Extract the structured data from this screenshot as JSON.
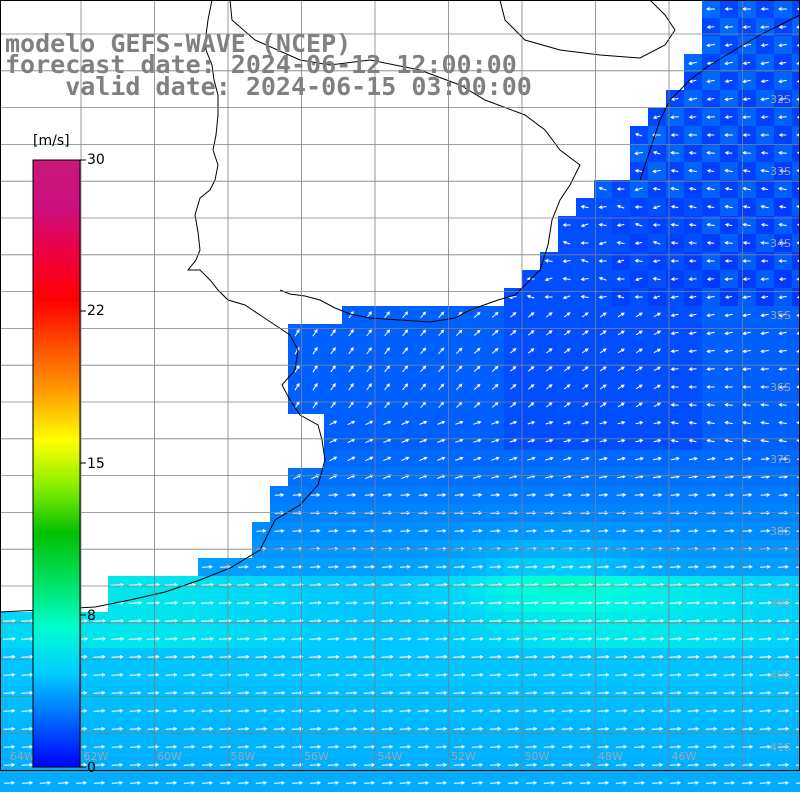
{
  "title": {
    "line1": "modelo GEFS-WAVE (NCEP)",
    "line2": "forecast date: 2024-06-12 12:00:00",
    "line3": "    valid date: 2024-06-15 03:00:00"
  },
  "colorbar": {
    "unit": "[m/s]",
    "ticks": [
      "30",
      "22",
      "15",
      "8",
      "0"
    ],
    "range": [
      0,
      30
    ],
    "colors": [
      "#0000ff",
      "#0066ff",
      "#00ccff",
      "#00ffcc",
      "#00e060",
      "#00c000",
      "#88ee00",
      "#ffff00",
      "#ffa000",
      "#ff5000",
      "#ff0000",
      "#ee0040",
      "#cc1080",
      "#c81878"
    ]
  },
  "grid_labels": {
    "right_latitudes": [
      "32S",
      "33S",
      "34S",
      "35S",
      "36S",
      "37S",
      "38S",
      "39S",
      "40S",
      "41S"
    ],
    "bottom_longitudes": [
      "64W",
      "62W",
      "60W",
      "58W",
      "56W",
      "54W",
      "52W",
      "50W",
      "48W",
      "46W"
    ]
  },
  "colors": {
    "land": "#ffffff",
    "coast": "#000000",
    "grid": "#808080",
    "arrow": "#ffffff",
    "title": "#808080"
  }
}
